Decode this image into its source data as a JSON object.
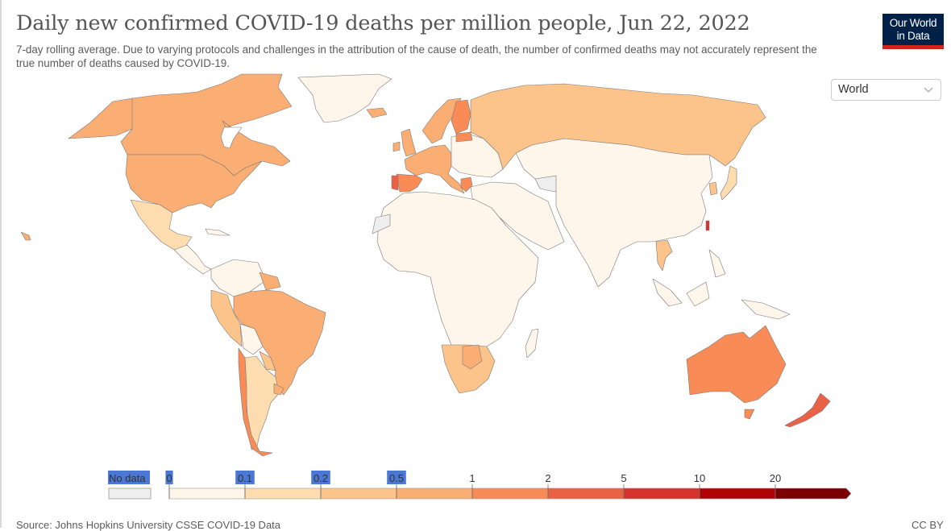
{
  "header": {
    "title": "Daily new confirmed COVID-19 deaths per million people, Jun 22, 2022",
    "subtitle": "7-day rolling average. Due to varying protocols and challenges in the attribution of the cause of death, the number of confirmed deaths may not accurately represent the true number of deaths caused by COVID-19."
  },
  "logo": {
    "line1": "Our World",
    "line2": "in Data",
    "bg_color": "#002147",
    "accent_color": "#ce261e"
  },
  "region_select": {
    "value": "World",
    "icon": "chevron-down-icon"
  },
  "legend": {
    "no_data_label": "No data",
    "no_data_color": "#eeeeee",
    "bins": [
      {
        "from": "0",
        "to": "0.1",
        "color": "#fef5eb"
      },
      {
        "from": "0.1",
        "to": "0.2",
        "color": "#fddcb0"
      },
      {
        "from": "0.2",
        "to": "0.5",
        "color": "#fcc48b"
      },
      {
        "from": "0.5",
        "to": "1",
        "color": "#fbae74"
      },
      {
        "from": "1",
        "to": "2",
        "color": "#f98b56"
      },
      {
        "from": "2",
        "to": "5",
        "color": "#ea6245"
      },
      {
        "from": "5",
        "to": "10",
        "color": "#d4322a"
      },
      {
        "from": "10",
        "to": "20",
        "color": "#b00306"
      },
      {
        "from": "20",
        "to": "",
        "color": "#7a0003"
      }
    ],
    "tick_labels": [
      "0",
      "0.1",
      "0.2",
      "0.5",
      "1",
      "2",
      "5",
      "10",
      "20"
    ]
  },
  "map_data": {
    "regions": [
      {
        "name": "Greenland",
        "bin": 0
      },
      {
        "name": "Canada",
        "bin": 3
      },
      {
        "name": "Alaska",
        "bin": 3
      },
      {
        "name": "United States",
        "bin": 3
      },
      {
        "name": "Mexico",
        "bin": 1
      },
      {
        "name": "Central America",
        "bin": 0
      },
      {
        "name": "Colombia/Venezuela",
        "bin": 0
      },
      {
        "name": "Peru/Ecuador",
        "bin": 2
      },
      {
        "name": "Brazil",
        "bin": 3
      },
      {
        "name": "Bolivia",
        "bin": 0
      },
      {
        "name": "Paraguay",
        "bin": 2
      },
      {
        "name": "Argentina",
        "bin": 1
      },
      {
        "name": "Chile",
        "bin": 4
      },
      {
        "name": "Uruguay",
        "bin": 3
      },
      {
        "name": "Russia",
        "bin": 2
      },
      {
        "name": "Scandinavia",
        "bin": 3
      },
      {
        "name": "Finland",
        "bin": 4
      },
      {
        "name": "Western Europe",
        "bin": 3
      },
      {
        "name": "Eastern Europe",
        "bin": 0
      },
      {
        "name": "Spain",
        "bin": 4
      },
      {
        "name": "Portugal",
        "bin": 5
      },
      {
        "name": "Greece",
        "bin": 4
      },
      {
        "name": "Africa",
        "bin": 0
      },
      {
        "name": "Southern Africa",
        "bin": 2
      },
      {
        "name": "Botswana",
        "bin": 3
      },
      {
        "name": "Western Sahara",
        "bin": -1
      },
      {
        "name": "Turkmenistan",
        "bin": -1
      },
      {
        "name": "Middle East",
        "bin": 0
      },
      {
        "name": "Asia",
        "bin": 0
      },
      {
        "name": "Japan",
        "bin": 1
      },
      {
        "name": "South Korea",
        "bin": 2
      },
      {
        "name": "Taiwan",
        "bin": 6
      },
      {
        "name": "Thailand",
        "bin": 2
      },
      {
        "name": "Southeast Asia",
        "bin": 0
      },
      {
        "name": "Australia",
        "bin": 4
      },
      {
        "name": "New Zealand",
        "bin": 5
      }
    ]
  },
  "footer": {
    "source": "Source: Johns Hopkins University CSSE COVID-19 Data",
    "license": "CC BY"
  }
}
